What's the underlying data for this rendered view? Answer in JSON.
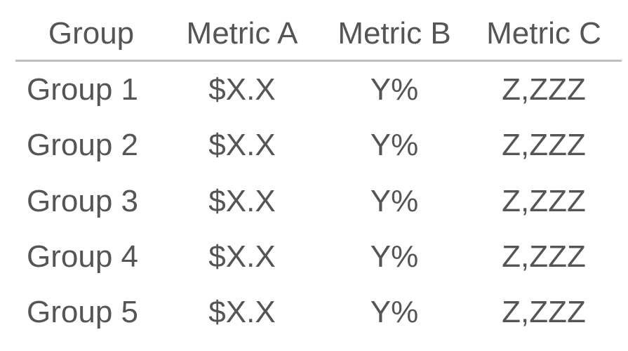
{
  "table": {
    "headers": [
      "Group",
      "Metric A",
      "Metric B",
      "Metric C"
    ],
    "rows": [
      [
        "Group 1",
        "$X.X",
        "Y%",
        "Z,ZZZ"
      ],
      [
        "Group 2",
        "$X.X",
        "Y%",
        "Z,ZZZ"
      ],
      [
        "Group 3",
        "$X.X",
        "Y%",
        "Z,ZZZ"
      ],
      [
        "Group 4",
        "$X.X",
        "Y%",
        "Z,ZZZ"
      ],
      [
        "Group 5",
        "$X.X",
        "Y%",
        "Z,ZZZ"
      ]
    ]
  }
}
